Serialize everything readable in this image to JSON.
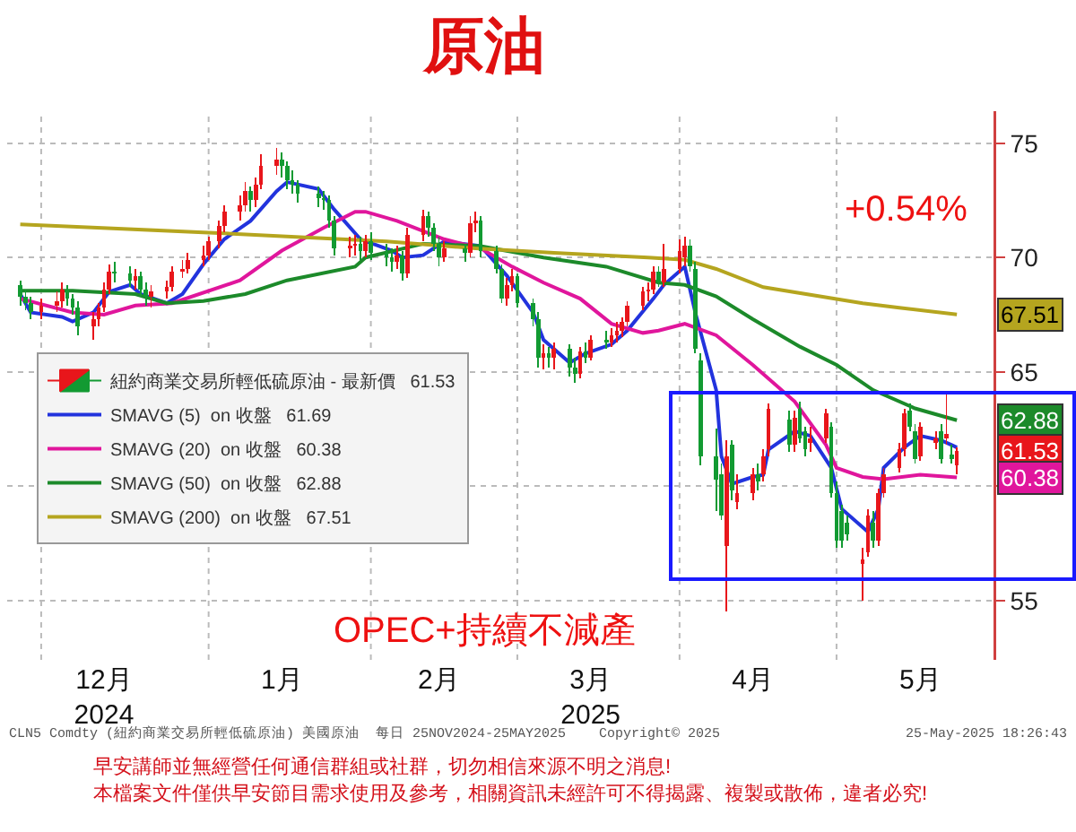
{
  "chart_data": {
    "type": "candlestick",
    "title": "原油",
    "x": [
      "2024-11-25",
      "2024-11-26",
      "2024-11-27",
      "2024-11-29",
      "2024-12-02",
      "2024-12-03",
      "2024-12-04",
      "2024-12-05",
      "2024-12-06",
      "2024-12-09",
      "2024-12-10",
      "2024-12-11",
      "2024-12-12",
      "2024-12-13",
      "2024-12-16",
      "2024-12-17",
      "2024-12-18",
      "2024-12-19",
      "2024-12-20",
      "2024-12-23",
      "2024-12-24",
      "2024-12-26",
      "2024-12-27",
      "2024-12-30",
      "2024-12-31",
      "2025-01-02",
      "2025-01-03",
      "2025-01-06",
      "2025-01-07",
      "2025-01-08",
      "2025-01-09",
      "2025-01-10",
      "2025-01-13",
      "2025-01-14",
      "2025-01-15",
      "2025-01-16",
      "2025-01-17",
      "2025-01-21",
      "2025-01-22",
      "2025-01-23",
      "2025-01-24",
      "2025-01-27",
      "2025-01-28",
      "2025-01-29",
      "2025-01-30",
      "2025-01-31",
      "2025-02-03",
      "2025-02-04",
      "2025-02-05",
      "2025-02-06",
      "2025-02-07",
      "2025-02-10",
      "2025-02-11",
      "2025-02-12",
      "2025-02-13",
      "2025-02-14",
      "2025-02-18",
      "2025-02-19",
      "2025-02-20",
      "2025-02-21",
      "2025-02-24",
      "2025-02-25",
      "2025-02-26",
      "2025-02-27",
      "2025-02-28",
      "2025-03-03",
      "2025-03-04",
      "2025-03-05",
      "2025-03-06",
      "2025-03-07",
      "2025-03-10",
      "2025-03-11",
      "2025-03-12",
      "2025-03-13",
      "2025-03-14",
      "2025-03-17",
      "2025-03-18",
      "2025-03-19",
      "2025-03-20",
      "2025-03-21",
      "2025-03-24",
      "2025-03-25",
      "2025-03-26",
      "2025-03-27",
      "2025-03-28",
      "2025-03-31",
      "2025-04-01",
      "2025-04-02",
      "2025-04-03",
      "2025-04-04",
      "2025-04-07",
      "2025-04-08",
      "2025-04-09",
      "2025-04-10",
      "2025-04-11",
      "2025-04-14",
      "2025-04-15",
      "2025-04-16",
      "2025-04-17",
      "2025-04-21",
      "2025-04-22",
      "2025-04-23",
      "2025-04-24",
      "2025-04-25",
      "2025-04-28",
      "2025-04-29",
      "2025-04-30",
      "2025-05-01",
      "2025-05-02",
      "2025-05-05",
      "2025-05-06",
      "2025-05-07",
      "2025-05-08",
      "2025-05-09",
      "2025-05-12",
      "2025-05-13",
      "2025-05-14",
      "2025-05-15",
      "2025-05-16",
      "2025-05-19",
      "2025-05-20",
      "2025-05-21",
      "2025-05-22",
      "2025-05-23"
    ],
    "series": [
      {
        "type": "candlestick",
        "name": "紐約商業交易所輕低硫原油 - 最新價   61.53",
        "colors": [
          "#129a32",
          "#129a32",
          "#129a32",
          "#e8161b",
          "#e8161b",
          "#e8161b",
          "#129a32",
          "#129a32",
          "#129a32",
          "#e8161b",
          "#e8161b",
          "#e8161b",
          "#e8161b",
          "#129a32",
          "#129a32",
          "#e8161b",
          "#129a32",
          "#129a32",
          "#e8161b",
          "#e8161b",
          "#e8161b",
          "#e8161b",
          "#e8161b",
          "#e8161b",
          "#e8161b",
          "#e8161b",
          "#e8161b",
          "#e8161b",
          "#e8161b",
          "#129a32",
          "#e8161b",
          "#e8161b",
          "#e8161b",
          "#129a32",
          "#129a32",
          "#129a32",
          "#129a32",
          "#129a32",
          "#129a32",
          "#129a32",
          "#129a32",
          "#e8161b",
          "#e8161b",
          "#129a32",
          "#e8161b",
          "#129a32",
          "#129a32",
          "#129a32",
          "#e8161b",
          "#129a32",
          "#e8161b",
          "#e8161b",
          "#129a32",
          "#129a32",
          "#129a32",
          "#e8161b",
          "#129a32",
          "#e8161b",
          "#e8161b",
          "#129a32",
          "#129a32",
          "#129a32",
          "#e8161b",
          "#e8161b",
          "#129a32",
          "#129a32",
          "#129a32",
          "#e8161b",
          "#129a32",
          "#e8161b",
          "#129a32",
          "#129a32",
          "#e8161b",
          "#129a32",
          "#e8161b",
          "#129a32",
          "#e8161b",
          "#e8161b",
          "#e8161b",
          "#e8161b",
          "#e8161b",
          "#e8161b",
          "#e8161b",
          "#129a32",
          "#e8161b",
          "#e8161b",
          "#e8161b",
          "#129a32",
          "#129a32",
          "#129a32",
          "#129a32",
          "#129a32",
          "#e8161b",
          "#129a32",
          "#e8161b",
          "#e8161b",
          "#129a32",
          "#e8161b",
          "#e8161b",
          "#129a32",
          "#e8161b",
          "#129a32",
          "#129a32",
          "#e8161b",
          "#e8161b",
          "#129a32",
          "#129a32",
          "#129a32",
          "#129a32",
          "#e8161b",
          "#e8161b",
          "#129a32",
          "#e8161b",
          "#e8161b",
          "#e8161b",
          "#e8161b",
          "#129a32",
          "#129a32",
          "#e8161b",
          "#e8161b",
          "#129a32",
          "#e8161b",
          "#129a32",
          "#e8161b"
        ],
        "ohlc": [
          [
            68.8,
            69.0,
            67.9,
            68.3
          ],
          [
            68.3,
            68.6,
            67.7,
            68.0
          ],
          [
            68.0,
            68.3,
            67.3,
            67.6
          ],
          [
            67.6,
            68.2,
            67.3,
            67.9
          ],
          [
            67.9,
            68.5,
            67.6,
            68.1
          ],
          [
            68.1,
            68.9,
            67.8,
            68.6
          ],
          [
            68.6,
            68.8,
            67.9,
            68.2
          ],
          [
            68.2,
            68.4,
            67.5,
            67.8
          ],
          [
            67.8,
            68.1,
            66.6,
            67.0
          ],
          [
            67.0,
            67.6,
            66.4,
            67.3
          ],
          [
            67.3,
            68.0,
            67.0,
            67.8
          ],
          [
            67.8,
            68.9,
            67.6,
            68.6
          ],
          [
            68.6,
            69.7,
            68.4,
            69.4
          ],
          [
            69.4,
            69.8,
            68.9,
            69.3
          ],
          [
            69.3,
            69.6,
            68.7,
            69.0
          ],
          [
            69.0,
            69.5,
            68.6,
            69.2
          ],
          [
            69.2,
            69.4,
            68.3,
            68.6
          ],
          [
            68.6,
            68.9,
            67.9,
            68.3
          ],
          [
            68.3,
            68.8,
            67.8,
            68.5
          ],
          [
            68.5,
            69.0,
            68.2,
            68.7
          ],
          [
            68.7,
            69.6,
            68.5,
            69.4
          ],
          [
            69.4,
            69.9,
            69.1,
            69.5
          ],
          [
            69.5,
            70.2,
            69.3,
            69.9
          ],
          [
            69.9,
            70.5,
            69.6,
            70.1
          ],
          [
            70.1,
            70.9,
            69.9,
            70.7
          ],
          [
            70.7,
            71.6,
            70.4,
            71.4
          ],
          [
            71.4,
            72.3,
            71.1,
            72.0
          ],
          [
            72.0,
            72.7,
            71.6,
            72.3
          ],
          [
            72.3,
            73.3,
            72.0,
            72.9
          ],
          [
            72.9,
            73.1,
            72.0,
            72.5
          ],
          [
            72.5,
            73.5,
            72.2,
            73.2
          ],
          [
            73.2,
            74.5,
            73.0,
            74.0
          ],
          [
            74.0,
            74.8,
            73.6,
            74.3
          ],
          [
            74.3,
            74.6,
            73.5,
            74.0
          ],
          [
            74.0,
            74.2,
            73.0,
            73.4
          ],
          [
            73.4,
            73.8,
            72.8,
            73.2
          ],
          [
            73.2,
            73.4,
            72.4,
            72.8
          ],
          [
            72.8,
            73.1,
            72.2,
            72.6
          ],
          [
            72.6,
            72.9,
            72.1,
            72.5
          ],
          [
            72.5,
            72.7,
            71.3,
            71.6
          ],
          [
            71.6,
            71.8,
            70.1,
            70.4
          ],
          [
            70.4,
            70.9,
            70.0,
            70.5
          ],
          [
            70.5,
            71.0,
            70.1,
            70.6
          ],
          [
            70.6,
            70.9,
            69.9,
            70.3
          ],
          [
            70.3,
            71.0,
            70.0,
            70.7
          ],
          [
            70.7,
            71.1,
            69.9,
            70.2
          ],
          [
            70.2,
            70.6,
            69.6,
            70.0
          ],
          [
            70.0,
            70.4,
            69.4,
            69.8
          ],
          [
            69.8,
            70.5,
            69.5,
            70.1
          ],
          [
            70.1,
            70.3,
            69.0,
            69.3
          ],
          [
            69.3,
            71.3,
            69.1,
            71.0
          ],
          [
            71.0,
            72.1,
            70.7,
            71.8
          ],
          [
            71.8,
            72.0,
            70.9,
            71.3
          ],
          [
            71.3,
            71.5,
            70.3,
            70.6
          ],
          [
            70.6,
            70.9,
            69.6,
            70.0
          ],
          [
            70.0,
            70.7,
            69.8,
            70.4
          ],
          [
            70.4,
            70.6,
            69.8,
            70.2
          ],
          [
            70.2,
            71.8,
            70.0,
            71.5
          ],
          [
            71.5,
            72.0,
            71.1,
            71.6
          ],
          [
            71.6,
            71.8,
            70.0,
            70.3
          ],
          [
            70.3,
            70.5,
            69.3,
            69.5
          ],
          [
            69.5,
            69.7,
            68.0,
            68.2
          ],
          [
            68.2,
            69.1,
            67.9,
            68.8
          ],
          [
            68.8,
            69.5,
            68.5,
            69.2
          ],
          [
            69.2,
            69.3,
            67.8,
            68.0
          ],
          [
            68.0,
            68.2,
            67.0,
            67.3
          ],
          [
            67.3,
            67.6,
            65.2,
            65.6
          ],
          [
            65.6,
            66.2,
            65.1,
            65.8
          ],
          [
            65.8,
            66.1,
            65.2,
            65.6
          ],
          [
            65.6,
            66.3,
            65.1,
            66.0
          ],
          [
            66.0,
            66.2,
            64.8,
            65.2
          ],
          [
            65.2,
            65.6,
            64.5,
            64.9
          ],
          [
            64.9,
            66.1,
            64.7,
            65.9
          ],
          [
            65.9,
            66.3,
            65.4,
            65.6
          ],
          [
            65.6,
            66.6,
            65.5,
            66.4
          ],
          [
            66.4,
            66.8,
            66.0,
            66.3
          ],
          [
            66.3,
            66.9,
            66.1,
            66.6
          ],
          [
            66.6,
            67.2,
            66.3,
            66.8
          ],
          [
            66.8,
            67.4,
            66.5,
            67.2
          ],
          [
            67.2,
            68.1,
            67.0,
            67.9
          ],
          [
            67.9,
            68.7,
            67.7,
            68.5
          ],
          [
            68.5,
            68.9,
            68.1,
            68.6
          ],
          [
            68.6,
            69.6,
            68.4,
            69.4
          ],
          [
            69.4,
            69.6,
            68.7,
            68.9
          ],
          [
            68.9,
            70.6,
            68.7,
            69.5
          ],
          [
            69.5,
            70.8,
            69.3,
            70.3
          ],
          [
            70.0,
            70.9,
            69.6,
            70.5
          ],
          [
            70.5,
            70.8,
            69.4,
            69.6
          ],
          [
            69.5,
            69.8,
            65.8,
            66.0
          ],
          [
            65.5,
            65.8,
            60.9,
            61.3
          ],
          [
            61.3,
            62.5,
            58.9,
            60.3
          ],
          [
            60.5,
            61.0,
            58.5,
            58.7
          ],
          [
            57.4,
            62.0,
            54.5,
            61.3
          ],
          [
            61.8,
            62.0,
            59.4,
            59.8
          ],
          [
            59.3,
            60.5,
            59.0,
            59.7
          ],
          [
            59.7,
            60.8,
            59.4,
            60.5
          ],
          [
            60.5,
            61.0,
            59.8,
            60.2
          ],
          [
            60.5,
            61.6,
            60.2,
            61.3
          ],
          [
            61.6,
            63.6,
            61.3,
            63.4
          ],
          [
            62.9,
            63.3,
            61.5,
            61.8
          ],
          [
            61.8,
            63.3,
            61.5,
            63.0
          ],
          [
            63.4,
            63.7,
            61.9,
            62.1
          ],
          [
            62.4,
            62.6,
            61.3,
            61.6
          ],
          [
            61.9,
            62.6,
            61.5,
            62.1
          ],
          [
            62.1,
            63.4,
            61.9,
            63.2
          ],
          [
            62.6,
            62.8,
            59.5,
            59.7
          ],
          [
            59.7,
            60.2,
            57.3,
            57.6
          ],
          [
            58.9,
            59.2,
            57.3,
            57.6
          ],
          [
            58.4,
            58.7,
            57.6,
            57.9
          ],
          [
            56.6,
            57.3,
            55.0,
            56.8
          ],
          [
            57.1,
            59.0,
            56.9,
            58.7
          ],
          [
            58.4,
            58.9,
            57.3,
            57.6
          ],
          [
            57.6,
            59.9,
            57.4,
            59.7
          ],
          [
            59.7,
            60.8,
            59.5,
            60.5
          ],
          [
            60.8,
            61.9,
            60.6,
            61.6
          ],
          [
            61.6,
            63.4,
            61.3,
            63.2
          ],
          [
            63.3,
            63.6,
            62.4,
            62.6
          ],
          [
            62.4,
            62.7,
            61.0,
            61.2
          ],
          [
            61.3,
            62.8,
            61.1,
            62.6
          ],
          [
            61.9,
            62.4,
            61.6,
            62.1
          ],
          [
            62.4,
            62.7,
            61.0,
            61.2
          ],
          [
            62.1,
            64.0,
            61.8,
            62.3
          ],
          [
            61.4,
            61.8,
            61.0,
            61.2
          ],
          [
            60.9,
            61.7,
            60.5,
            61.53
          ]
        ]
      },
      {
        "type": "line",
        "name": "SMAVG (5)  on 收盤   61.69",
        "color": "#2233dd",
        "x": [
          "2024-11-25",
          "2024-11-27",
          "2024-12-03",
          "2024-12-05",
          "2024-12-09",
          "2024-12-12",
          "2024-12-16",
          "2024-12-18",
          "2024-12-23",
          "2024-12-26",
          "2024-12-30",
          "2025-01-03",
          "2025-01-08",
          "2025-01-13",
          "2025-01-15",
          "2025-01-21",
          "2025-01-24",
          "2025-01-29",
          "2025-02-04",
          "2025-02-06",
          "2025-02-10",
          "2025-02-14",
          "2025-02-21",
          "2025-02-26",
          "2025-03-03",
          "2025-03-05",
          "2025-03-10",
          "2025-03-13",
          "2025-03-18",
          "2025-03-21",
          "2025-03-26",
          "2025-03-28",
          "2025-04-01",
          "2025-04-03",
          "2025-04-07",
          "2025-04-08",
          "2025-04-10",
          "2025-04-14",
          "2025-04-16",
          "2025-04-17",
          "2025-04-22",
          "2025-04-25",
          "2025-04-29",
          "2025-05-01",
          "2025-05-06",
          "2025-05-08",
          "2025-05-09",
          "2025-05-13",
          "2025-05-16",
          "2025-05-20",
          "2025-05-22",
          "2025-05-23"
        ],
        "values": [
          68.4,
          67.6,
          67.4,
          67.2,
          67.6,
          68.5,
          68.8,
          68.4,
          68.0,
          68.4,
          69.7,
          70.8,
          71.6,
          72.9,
          73.3,
          73.0,
          72.1,
          70.8,
          70.3,
          70.0,
          70.1,
          70.7,
          70.5,
          69.2,
          67.6,
          66.4,
          65.4,
          65.8,
          66.2,
          66.8,
          68.2,
          68.8,
          69.6,
          67.6,
          64.2,
          61.3,
          60.1,
          60.4,
          60.5,
          61.6,
          62.4,
          62.2,
          60.8,
          59.0,
          58.0,
          59.0,
          60.8,
          61.7,
          62.2,
          62.0,
          61.8,
          61.69
        ]
      },
      {
        "type": "line",
        "name": "SMAVG (20)  on 收盤   60.38",
        "color": "#e0169c",
        "x": [
          "2024-11-25",
          "2024-12-05",
          "2024-12-11",
          "2024-12-17",
          "2024-12-24",
          "2025-01-06",
          "2025-01-14",
          "2025-01-22",
          "2025-01-28",
          "2025-01-30",
          "2025-02-05",
          "2025-02-14",
          "2025-02-21",
          "2025-02-27",
          "2025-03-05",
          "2025-03-12",
          "2025-03-18",
          "2025-03-24",
          "2025-03-27",
          "2025-04-01",
          "2025-04-07",
          "2025-04-14",
          "2025-04-22",
          "2025-04-28",
          "2025-04-30",
          "2025-05-05",
          "2025-05-09",
          "2025-05-16",
          "2025-05-23"
        ],
        "values": [
          68.2,
          67.6,
          67.5,
          67.9,
          68.0,
          69.0,
          70.3,
          71.3,
          72.0,
          72.0,
          71.6,
          70.8,
          70.4,
          69.6,
          68.9,
          68.2,
          67.1,
          66.7,
          66.8,
          67.1,
          66.6,
          65.3,
          63.7,
          61.8,
          60.8,
          60.4,
          60.3,
          60.5,
          60.38
        ]
      },
      {
        "type": "line",
        "name": "SMAVG (50)  on 收盤   62.88",
        "color": "#1c8a2a",
        "x": [
          "2024-11-25",
          "2024-12-05",
          "2024-12-17",
          "2024-12-23",
          "2024-12-30",
          "2025-01-07",
          "2025-01-15",
          "2025-01-28",
          "2025-01-30",
          "2025-02-10",
          "2025-02-21",
          "2025-03-05",
          "2025-03-17",
          "2025-03-27",
          "2025-04-01",
          "2025-04-07",
          "2025-04-14",
          "2025-04-23",
          "2025-04-30",
          "2025-05-07",
          "2025-05-15",
          "2025-05-23"
        ],
        "values": [
          68.55,
          68.55,
          68.4,
          68.0,
          68.1,
          68.4,
          69.0,
          69.6,
          70.0,
          70.6,
          70.5,
          70.0,
          69.6,
          68.9,
          68.8,
          68.3,
          67.3,
          66.1,
          65.3,
          64.2,
          63.4,
          62.88
        ]
      },
      {
        "type": "line",
        "name": "SMAVG (200)  on 收盤   67.51",
        "color": "#b5a51f",
        "x": [
          "2024-11-25",
          "2024-12-30",
          "2025-02-03",
          "2025-02-20",
          "2025-03-07",
          "2025-03-25",
          "2025-04-01",
          "2025-04-07",
          "2025-04-16",
          "2025-05-05",
          "2025-05-12",
          "2025-05-23"
        ],
        "values": [
          71.45,
          71.1,
          70.7,
          70.4,
          70.2,
          70.0,
          69.9,
          69.5,
          68.7,
          68.0,
          67.8,
          67.51
        ]
      }
    ],
    "xlim": [
      "2024-11-22T12:00",
      "2025-05-30"
    ],
    "xticks": [
      {
        "value": "2024-11-29",
        "label": null
      },
      {
        "value": "2024-12-11",
        "label": "12月\n2024"
      },
      {
        "value": "2024-12-31",
        "label": null
      },
      {
        "value": "2025-01-14",
        "label": "1月"
      },
      {
        "value": "2025-01-31",
        "label": null
      },
      {
        "value": "2025-02-13",
        "label": "2月"
      },
      {
        "value": "2025-02-28",
        "label": null
      },
      {
        "value": "2025-03-14",
        "label": "3月\n2025"
      },
      {
        "value": "2025-03-31",
        "label": null
      },
      {
        "value": "2025-04-14",
        "label": "4月"
      },
      {
        "value": "2025-04-30",
        "label": null
      },
      {
        "value": "2025-05-16",
        "label": "5月"
      }
    ],
    "ylim": [
      52.4,
      76.4
    ],
    "yticks": [
      55,
      {
        "value": 60,
        "label": null
      },
      65,
      70,
      75
    ],
    "grid": true,
    "legend": "bottom left",
    "annotations": [
      "+0.54%",
      "OPEC+持續不減產",
      "CLN5 Comdty (紐約商業交易所輕低硫原油) 美國原油  每日 25NOV2024-25MAY2025",
      "Copyright© 2025",
      "25-May-2025 18:26:43",
      "早安講師並無經營任何通信群組或社群，切勿相信來源不明之消息!",
      "本檔案文件僅供早安節目需求使用及參考，相關資訊未經許可不得揭露、複製或散佈，違者必究!",
      {
        "text": "67.51",
        "y": 67.51
      },
      {
        "text": "62.88",
        "y": 62.88
      },
      {
        "text": "61.53",
        "y": 61.53
      },
      {
        "text": "60.38",
        "y": 60.38
      }
    ]
  }
}
